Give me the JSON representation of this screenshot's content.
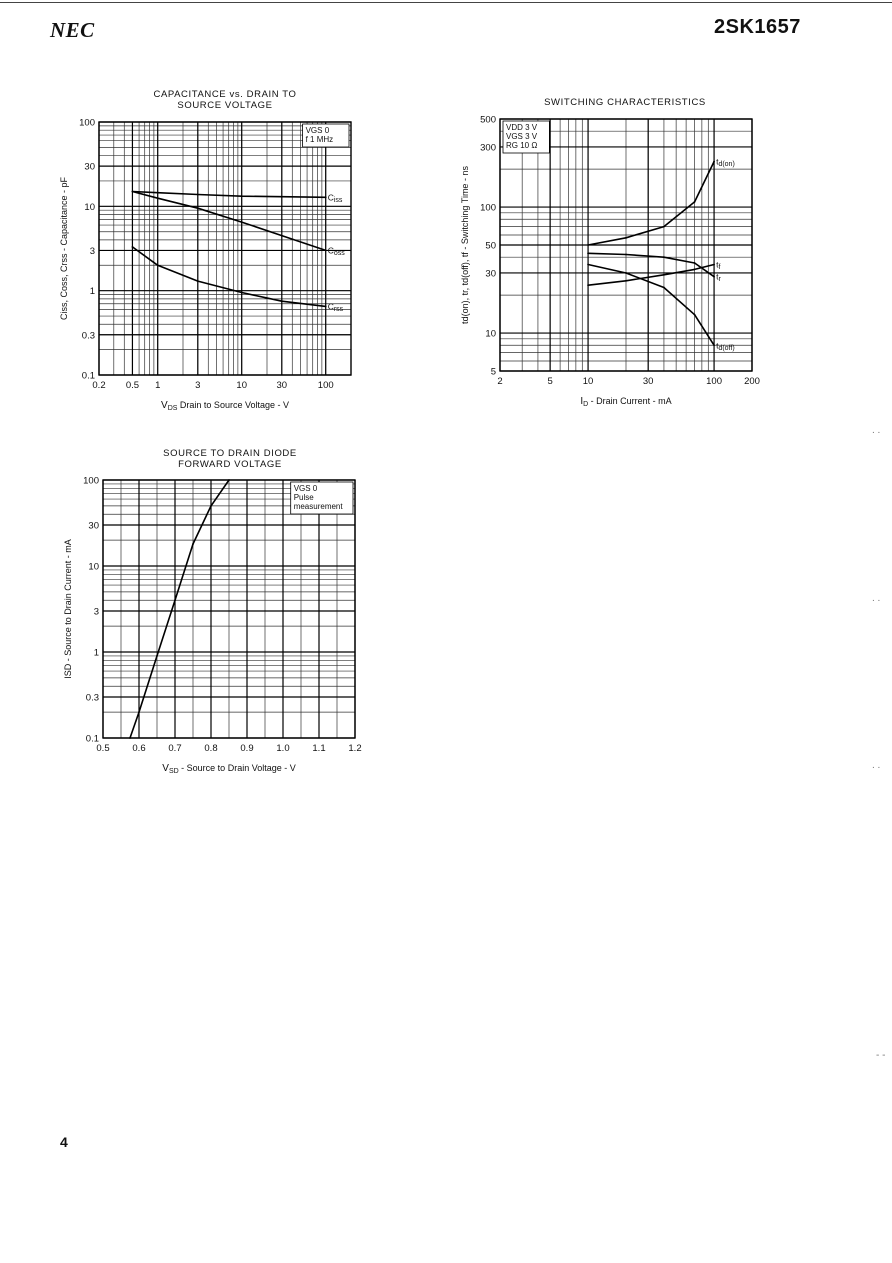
{
  "header": {
    "brand": "NEC",
    "part_number": "2SK1657"
  },
  "footer": {
    "page_number": "4"
  },
  "chart_data": [
    {
      "type": "line",
      "title_lines": [
        "CAPACITANCE vs. DRAIN TO",
        "SOURCE VOLTAGE"
      ],
      "xlabel_main": "V",
      "xlabel_sub": "DS",
      "xlabel_rest": "  Drain to Source Voltage - V",
      "ylabel": "Ciss, Coss, Crss - Capacitance - pF",
      "xscale": "log",
      "yscale": "log",
      "xlim": [
        0.2,
        200
      ],
      "ylim": [
        0.1,
        100
      ],
      "xticks": [
        0.2,
        0.5,
        1,
        3,
        10,
        30,
        100
      ],
      "xtick_labels": [
        "0.2",
        "0.5",
        "1",
        "3",
        "10",
        "30",
        "100"
      ],
      "yticks": [
        0.1,
        0.3,
        1,
        3,
        10,
        30,
        100
      ],
      "ytick_labels": [
        "0.1",
        "0.3",
        "1",
        "3",
        "10",
        "30",
        "100"
      ],
      "legend_lines": [
        "VGS  0",
        "f  1 MHz"
      ],
      "legend_position": "top-right",
      "series": [
        {
          "name": "Ciss",
          "x": [
            0.5,
            1,
            3,
            10,
            30,
            100
          ],
          "y": [
            15,
            14.5,
            13.8,
            13.2,
            13,
            12.8
          ]
        },
        {
          "name": "Coss",
          "x": [
            0.5,
            1,
            3,
            10,
            30,
            100
          ],
          "y": [
            15,
            12.5,
            9.5,
            6.5,
            4.5,
            3.0
          ]
        },
        {
          "name": "Crss",
          "x": [
            0.5,
            1,
            3,
            10,
            30,
            100
          ],
          "y": [
            3.3,
            2.0,
            1.3,
            0.95,
            0.75,
            0.65
          ]
        }
      ]
    },
    {
      "type": "line",
      "title_lines": [
        "SWITCHING CHARACTERISTICS"
      ],
      "xlabel_main": "I",
      "xlabel_sub": "D",
      "xlabel_rest": " - Drain Current - mA",
      "ylabel": "td(on), tr, td(off), tf - Switching Time - ns",
      "xscale": "log",
      "yscale": "log",
      "xlim": [
        2,
        200
      ],
      "ylim": [
        5,
        500
      ],
      "xticks": [
        2,
        5,
        10,
        30,
        100,
        200
      ],
      "xtick_labels": [
        "2",
        "5",
        "10",
        "30",
        "100",
        "200"
      ],
      "yticks": [
        5,
        10,
        30,
        50,
        100,
        300,
        500
      ],
      "ytick_labels": [
        "5",
        "10",
        "30",
        "50",
        "100",
        "300",
        "500"
      ],
      "legend_lines": [
        "VDD  3 V",
        "VGS  3 V",
        "RG  10 Ω"
      ],
      "legend_position": "top-left",
      "series": [
        {
          "name": "td(on)",
          "x": [
            10,
            20,
            40,
            70,
            100
          ],
          "y": [
            50,
            57,
            70,
            110,
            230
          ]
        },
        {
          "name": "tr",
          "x": [
            10,
            20,
            40,
            70,
            100
          ],
          "y": [
            43,
            42,
            40,
            36,
            28
          ]
        },
        {
          "name": "tf",
          "x": [
            10,
            20,
            40,
            70,
            100
          ],
          "y": [
            24,
            26,
            29,
            32,
            35
          ]
        },
        {
          "name": "td(off)",
          "x": [
            10,
            20,
            40,
            70,
            100
          ],
          "y": [
            35,
            30,
            23,
            14,
            8
          ]
        }
      ]
    },
    {
      "type": "line",
      "title_lines": [
        "SOURCE TO DRAIN DIODE",
        "FORWARD VOLTAGE"
      ],
      "xlabel_main": "V",
      "xlabel_sub": "SD",
      "xlabel_rest": " - Source to Drain Voltage - V",
      "ylabel": "ISD - Source to Drain Current - mA",
      "xscale": "linear",
      "yscale": "log",
      "xlim": [
        0.5,
        1.2
      ],
      "ylim": [
        0.1,
        100
      ],
      "xticks": [
        0.5,
        0.6,
        0.7,
        0.8,
        0.9,
        1.0,
        1.1,
        1.2
      ],
      "xtick_labels": [
        "0.5",
        "0.6",
        "0.7",
        "0.8",
        "0.9",
        "1.0",
        "1.1",
        "1.2"
      ],
      "yticks": [
        0.1,
        0.3,
        1,
        3,
        10,
        30,
        100
      ],
      "ytick_labels": [
        "0.1",
        "0.3",
        "1",
        "3",
        "10",
        "30",
        "100"
      ],
      "legend_lines": [
        "VGS  0",
        "Pulse",
        "measurement"
      ],
      "legend_position": "top-right",
      "series": [
        {
          "name": "",
          "x": [
            0.575,
            0.6,
            0.65,
            0.7,
            0.75,
            0.8,
            0.85
          ],
          "y": [
            0.1,
            0.2,
            0.9,
            4.0,
            18,
            50,
            100
          ]
        }
      ]
    }
  ]
}
